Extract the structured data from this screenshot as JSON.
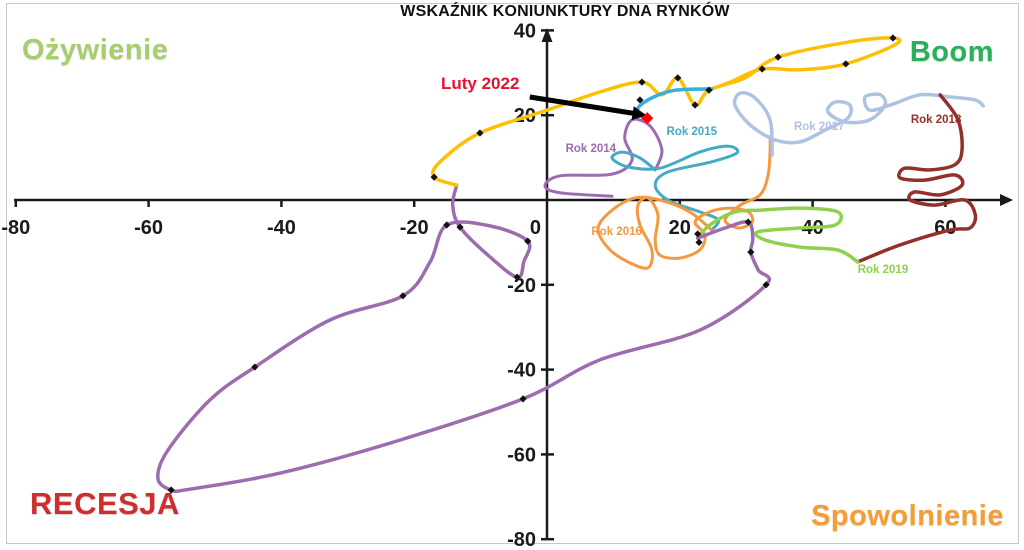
{
  "chart_data": {
    "type": "line",
    "title": "WSKAŹNIK KONIUNKTURY DNA RYNKÓW",
    "x_axis": {
      "min": -80,
      "max": 70,
      "tick_labels": [
        -80,
        -60,
        -40,
        -20,
        0,
        20,
        40,
        60
      ]
    },
    "y_axis": {
      "min": -80,
      "max": 40,
      "tick_labels": [
        40,
        20,
        -20,
        -40,
        -60,
        -80
      ]
    },
    "grid": false,
    "quadrant_labels": {
      "top_left": {
        "label": "Ożywienie",
        "color": "#a7ce6c"
      },
      "top_right": {
        "label": "Boom",
        "color": "#27b15a"
      },
      "bottom_left": {
        "label": "RECESJA",
        "color": "#d22d2d"
      },
      "bottom_right": {
        "label": "Spowolnienie",
        "color": "#f49d33"
      }
    },
    "annotation": {
      "label": "Luty 2022",
      "color": "#e8112d",
      "arrow_from": [
        -2.6,
        24.3
      ],
      "arrow_to": [
        13.2,
        20.4
      ],
      "point": [
        15.1,
        19.3
      ],
      "point_color": "#ff0000"
    },
    "marker_color": "#111111",
    "series": [
      {
        "id": "rok-2014",
        "label": "Rok 2014",
        "color": "#9b6db0",
        "width": 3,
        "label_at": [
          6.6,
          12.3
        ],
        "points": [
          [
            9.8,
            0.9
          ],
          [
            2,
            1.7
          ],
          [
            -0.3,
            3.3
          ],
          [
            2,
            5.7
          ],
          [
            9.8,
            6.1
          ],
          [
            12.8,
            9.4
          ],
          [
            11.7,
            14.6
          ],
          [
            12.8,
            18.9
          ],
          [
            15.5,
            17.5
          ],
          [
            17.3,
            11.8
          ],
          [
            16.3,
            7.1
          ]
        ],
        "markers": []
      },
      {
        "id": "rok-2015",
        "label": "Rok 2015",
        "color": "#45aac5",
        "width": 3,
        "label_at": [
          21.8,
          16.3
        ],
        "points": [
          [
            16.3,
            7.1
          ],
          [
            14,
            9.9
          ],
          [
            11.3,
            11.3
          ],
          [
            9.8,
            9.9
          ],
          [
            12.2,
            7.8
          ],
          [
            17,
            7.5
          ],
          [
            23,
            11.3
          ],
          [
            27.3,
            12.7
          ],
          [
            28.6,
            11.1
          ],
          [
            24.8,
            9
          ],
          [
            18.2,
            6.6
          ],
          [
            16.3,
            3.5
          ],
          [
            18.2,
            0
          ],
          [
            23,
            -2.8
          ],
          [
            25.8,
            -4.7
          ],
          [
            24.8,
            -7.1
          ]
        ],
        "markers": []
      },
      {
        "id": "rok-2016",
        "label": "Rok 2016",
        "color": "#f5993f",
        "width": 3,
        "label_at": [
          10.5,
          -7.3
        ],
        "points": [
          [
            24.8,
            -7.1
          ],
          [
            21.5,
            -2.8
          ],
          [
            17,
            0
          ],
          [
            13.3,
            0.5
          ],
          [
            9.8,
            -2.4
          ],
          [
            7.7,
            -6.6
          ],
          [
            9.2,
            -11.3
          ],
          [
            12.2,
            -14.6
          ],
          [
            15.2,
            -16
          ],
          [
            15.8,
            -11.8
          ],
          [
            14,
            -5.9
          ],
          [
            13.7,
            -1.2
          ],
          [
            15.2,
            0.5
          ],
          [
            16.7,
            -3.5
          ],
          [
            16.3,
            -9.4
          ],
          [
            17,
            -13
          ],
          [
            20,
            -13.7
          ],
          [
            23,
            -11.8
          ],
          [
            23.8,
            -8.3
          ],
          [
            22.3,
            -5.2
          ],
          [
            24.5,
            -2.8
          ],
          [
            27.6,
            -1.9
          ],
          [
            30.3,
            -2.8
          ],
          [
            30.9,
            -5.2
          ],
          [
            28.8,
            -6.6
          ],
          [
            26.8,
            -4.7
          ],
          [
            29.1,
            -1.2
          ],
          [
            32.1,
            1.2
          ],
          [
            33.3,
            5.9
          ],
          [
            33.6,
            11.8
          ],
          [
            33.6,
            14.9
          ]
        ],
        "markers": []
      },
      {
        "id": "rok-2017",
        "label": "Rok 2017",
        "color": "#aec3e2",
        "width": 3.5,
        "label_at": [
          41,
          17.5
        ],
        "points": [
          [
            33.9,
            10.6
          ],
          [
            33.6,
            18.9
          ],
          [
            31.3,
            24.1
          ],
          [
            29.1,
            25.2
          ],
          [
            28.3,
            22.4
          ],
          [
            30.6,
            17.7
          ],
          [
            34.3,
            14.2
          ],
          [
            38.1,
            13.7
          ],
          [
            41.9,
            16.5
          ],
          [
            45.3,
            19.3
          ],
          [
            45.6,
            22.4
          ],
          [
            43.4,
            23.1
          ],
          [
            42.3,
            20.8
          ],
          [
            44.9,
            18.4
          ],
          [
            48.6,
            18.9
          ],
          [
            50.9,
            22.4
          ],
          [
            50.2,
            24.8
          ],
          [
            47.9,
            24.3
          ],
          [
            48.6,
            21.2
          ],
          [
            51.7,
            22.4
          ],
          [
            56.2,
            24.8
          ],
          [
            60.7,
            24.3
          ],
          [
            64.5,
            23.6
          ],
          [
            65.7,
            22.2
          ]
        ],
        "markers": []
      },
      {
        "id": "rok-2018",
        "label": "Rok 2018",
        "color": "#93302b",
        "width": 3.5,
        "label_at": [
          58.6,
          19.1
        ],
        "points": [
          [
            59.2,
            24.8
          ],
          [
            61.9,
            18.9
          ],
          [
            62.5,
            11.8
          ],
          [
            61.4,
            8.3
          ],
          [
            57.7,
            7.1
          ],
          [
            53.9,
            7.5
          ],
          [
            53.2,
            5.2
          ],
          [
            56.9,
            4.7
          ],
          [
            61.4,
            5.9
          ],
          [
            62.5,
            3.5
          ],
          [
            59.2,
            1.2
          ],
          [
            55.4,
            1.9
          ],
          [
            54.7,
            0
          ],
          [
            58.4,
            -1.2
          ],
          [
            62.9,
            0
          ],
          [
            64.5,
            -3.5
          ],
          [
            63.7,
            -6.6
          ],
          [
            60.7,
            -7.1
          ],
          [
            53.2,
            -10.6
          ],
          [
            46.8,
            -14.6
          ]
        ],
        "markers": []
      },
      {
        "id": "rok-2019",
        "label": "Rok 2019",
        "color": "#8fd04c",
        "width": 3.5,
        "label_at": [
          50.6,
          -16.3
        ],
        "points": [
          [
            46.8,
            -14.6
          ],
          [
            43.8,
            -11.8
          ],
          [
            38.1,
            -11.1
          ],
          [
            32.8,
            -9.4
          ],
          [
            31.8,
            -7.5
          ],
          [
            38.1,
            -6.6
          ],
          [
            43.4,
            -5.9
          ],
          [
            43.8,
            -2.8
          ],
          [
            38.1,
            -1.9
          ],
          [
            32.1,
            -2.4
          ],
          [
            28.3,
            -2.8
          ],
          [
            24.5,
            -5.9
          ],
          [
            22.7,
            -9
          ]
        ],
        "markers": []
      },
      {
        "id": "series-purple-loop",
        "label": null,
        "color": "#9b6db0",
        "width": 3.5,
        "label_at": null,
        "points": [
          [
            22.7,
            -9
          ],
          [
            26.8,
            -6.6
          ],
          [
            30.3,
            -5.2
          ],
          [
            31,
            -9
          ],
          [
            30.7,
            -12.3
          ],
          [
            31.8,
            -16.5
          ],
          [
            33,
            -20
          ],
          [
            23,
            -30.7
          ],
          [
            8,
            -37.7
          ],
          [
            -3.6,
            -46.9
          ],
          [
            -22.1,
            -56.6
          ],
          [
            -40.2,
            -64.4
          ],
          [
            -53.8,
            -68.2
          ],
          [
            -56.6,
            -68.4
          ],
          [
            -58.6,
            -65.6
          ],
          [
            -57.1,
            -59
          ],
          [
            -50.8,
            -47.2
          ],
          [
            -44,
            -39.4
          ],
          [
            -32.7,
            -28.3
          ],
          [
            -21.7,
            -22.6
          ],
          [
            -17.6,
            -14.6
          ],
          [
            -15.1,
            -5.9
          ],
          [
            -8.6,
            -6.1
          ],
          [
            -2.9,
            -9.7
          ],
          [
            -3.5,
            -14.6
          ],
          [
            -4.5,
            -18.2
          ],
          [
            -8.9,
            -13
          ],
          [
            -13.1,
            -6.4
          ],
          [
            -14.2,
            -1.2
          ],
          [
            -13.6,
            3.5
          ]
        ],
        "markers": [
          [
            22.7,
            -8
          ],
          [
            22.9,
            -10
          ],
          [
            30.3,
            -5.2
          ],
          [
            30.7,
            -12.3
          ],
          [
            33,
            -20
          ],
          [
            -3.6,
            -46.9
          ],
          [
            -21.7,
            -22.6
          ],
          [
            -44,
            -39.4
          ],
          [
            -56.6,
            -68.4
          ],
          [
            -15.1,
            -5.9
          ],
          [
            -13.1,
            -6.4
          ],
          [
            -2.9,
            -9.7
          ],
          [
            -4.5,
            -18.2
          ]
        ]
      },
      {
        "id": "series-yellow",
        "label": null,
        "color": "#ffc003",
        "width": 3.5,
        "label_at": null,
        "points": [
          [
            -13.6,
            3.5
          ],
          [
            -17,
            5.4
          ],
          [
            -16.1,
            9
          ],
          [
            -10.1,
            15.8
          ],
          [
            0,
            21.2
          ],
          [
            8,
            25.5
          ],
          [
            14.3,
            27.8
          ],
          [
            17.3,
            24.8
          ],
          [
            19.7,
            28.8
          ],
          [
            22.3,
            22.4
          ],
          [
            24.4,
            25.9
          ],
          [
            29.8,
            28.8
          ],
          [
            34.8,
            33.7
          ],
          [
            45.6,
            37.3
          ],
          [
            52.1,
            38.2
          ],
          [
            52.4,
            36.6
          ],
          [
            45,
            32.1
          ],
          [
            38.1,
            30.7
          ],
          [
            32.4,
            30.9
          ],
          [
            27.6,
            27.8
          ],
          [
            24.8,
            26.2
          ]
        ],
        "markers": [
          [
            -17,
            5.4
          ],
          [
            -10.1,
            15.8
          ],
          [
            14.3,
            27.8
          ],
          [
            19.7,
            28.8
          ],
          [
            22.3,
            22.4
          ],
          [
            24.4,
            25.9
          ],
          [
            34.8,
            33.7
          ],
          [
            52.1,
            38.2
          ],
          [
            45,
            32.1
          ],
          [
            32.4,
            30.9
          ]
        ]
      },
      {
        "id": "series-cyan",
        "label": null,
        "color": "#35aee0",
        "width": 3.5,
        "label_at": null,
        "points": [
          [
            24.8,
            26.2
          ],
          [
            19.3,
            25.9
          ],
          [
            15.8,
            24.1
          ],
          [
            13.7,
            21.7
          ],
          [
            14.2,
            19.8
          ],
          [
            15.1,
            19.3
          ]
        ],
        "markers": [
          [
            14,
            23.6
          ]
        ]
      }
    ]
  }
}
